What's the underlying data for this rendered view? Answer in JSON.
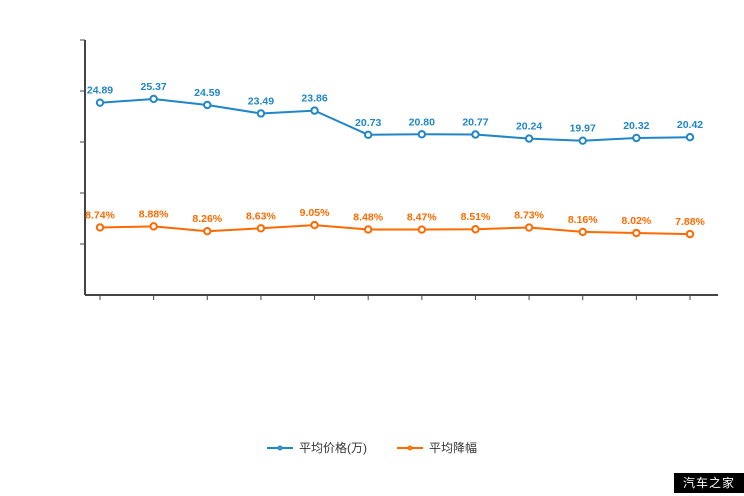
{
  "watermark": {
    "text": "汽车之家",
    "bg": "#000000",
    "color": "#ffffff"
  },
  "chart_data": {
    "type": "line",
    "title": "",
    "xlabel": "",
    "ylabel": "",
    "ylim": [
      0,
      33
    ],
    "grid": false,
    "legend_position": "bottom",
    "marker": "empty-circle",
    "series": [
      {
        "name": "平均价格(万)",
        "color": "#2086c8",
        "values": [
          24.89,
          25.37,
          24.59,
          23.49,
          23.86,
          20.73,
          20.8,
          20.77,
          20.24,
          19.97,
          20.32,
          20.42
        ],
        "labels": [
          "24.89",
          "25.37",
          "24.59",
          "23.49",
          "23.86",
          "20.73",
          "20.80",
          "20.77",
          "20.24",
          "19.97",
          "20.32",
          "20.42"
        ]
      },
      {
        "name": "平均降幅",
        "color": "#ff6a00",
        "values": [
          8.74,
          8.88,
          8.26,
          8.63,
          9.05,
          8.48,
          8.47,
          8.51,
          8.73,
          8.16,
          8.02,
          7.88
        ],
        "labels": [
          "8.74%",
          "8.88%",
          "8.26%",
          "8.63%",
          "9.05%",
          "8.48%",
          "8.47%",
          "8.51%",
          "8.73%",
          "8.16%",
          "8.02%",
          "7.88%"
        ]
      }
    ]
  }
}
